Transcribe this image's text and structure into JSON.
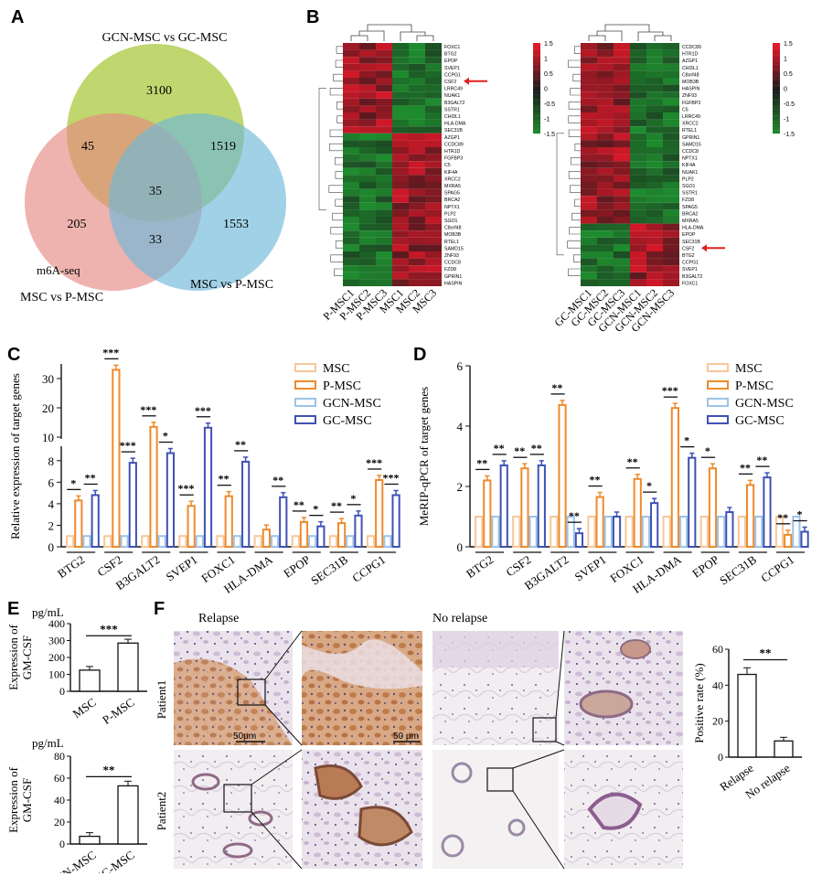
{
  "panels": {
    "a": "A",
    "b": "B",
    "c": "C",
    "d": "D",
    "e": "E",
    "f": "F"
  },
  "venn": {
    "sets": [
      {
        "name": "GCN-MSC vs GC-MSC",
        "color": "#b5cf55"
      },
      {
        "name_line1": "m6A-seq",
        "name_line2": "MSC vs P-MSC",
        "color": "#e58a83"
      },
      {
        "name": "MSC vs P-MSC",
        "color": "#6fb8d9"
      }
    ],
    "regions": {
      "top_only": "3100",
      "left_only": "205",
      "right_only": "1553",
      "top_left": "45",
      "top_right": "1519",
      "left_right": "33",
      "center": "35"
    }
  },
  "heatmap_b": {
    "scale": {
      "ticks": [
        "1.5",
        "1",
        "0.5",
        "0",
        "-0.5",
        "-1",
        "-1.5"
      ],
      "colors": [
        "#e8182a",
        "#1b1b1b",
        "#1e8b2e"
      ]
    },
    "left": {
      "genes": [
        "FOXC1",
        "BTG2",
        "EPOP",
        "SVEP1",
        "CCPG1",
        "CSF2",
        "LRRC49",
        "NUAK1",
        "B3GALT2",
        "SSTR1",
        "CHI3L1",
        "HLA-DMA",
        "SEC31B",
        "AZGP1",
        "CCDC89",
        "HTR1D",
        "FGFBP3",
        "C5",
        "KIF4A",
        "XRCC2",
        "MXRA5",
        "SPAG5",
        "BRCA2",
        "NPTX1",
        "PLP2",
        "SGO1",
        "C8orf48",
        "MOB3B",
        "RTEL1",
        "SAMD15",
        "ZNF93",
        "CCDC8",
        "FZD8",
        "GPRIN1",
        "HASPIN"
      ],
      "samples": [
        "P-MSC1",
        "P-MSC2",
        "P-MSC3",
        "MSC1",
        "MSC2",
        "MSC3"
      ],
      "arrow_gene": "CSF2"
    },
    "right": {
      "genes": [
        "CCDC89",
        "HTR1D",
        "AZGP1",
        "CHI3L1",
        "C8orf48",
        "MOB3B",
        "HASPIN",
        "ZNF93",
        "FGFBP3",
        "C5",
        "LRRC49",
        "XRCC2",
        "RTEL1",
        "GPRIN1",
        "SAMD15",
        "CCDC8",
        "NPTX1",
        "KIF4A",
        "NUAK1",
        "PLP2",
        "SGO1",
        "SSTR1",
        "FZD8",
        "SPAG5",
        "BRCA2",
        "MXRA5",
        "HLA-DMA",
        "EPOP",
        "SEC31B",
        "CSF2",
        "BTG2",
        "CCPG1",
        "SVEP1",
        "B3GALT2",
        "FOXC1"
      ],
      "samples": [
        "GC-MSC1",
        "GC-MSC2",
        "GC-MSC3",
        "GCN-MSC1",
        "GCN-MSC2",
        "GCN-MSC3"
      ],
      "arrow_gene": "CSF2"
    }
  },
  "chart_data": [
    {
      "type": "bar",
      "panel": "C",
      "ylabel": "Relative expression of target genes",
      "yticks_lower": [
        "0",
        "2",
        "4",
        "6",
        "8"
      ],
      "yticks_upper": [
        "10",
        "20",
        "30"
      ],
      "categories": [
        "BTG2",
        "CSF2",
        "B3GALT2",
        "SVEP1",
        "FOXC1",
        "HLA-DMA",
        "EPOP",
        "SEC31B",
        "CCPG1"
      ],
      "series": [
        {
          "name": "MSC",
          "color": "#f6c79a",
          "values": [
            1,
            1,
            1,
            1,
            1,
            1,
            1,
            1,
            1
          ]
        },
        {
          "name": "P-MSC",
          "color": "#ef8a2b",
          "values": [
            4.3,
            33,
            13.5,
            3.8,
            4.7,
            1.6,
            2.3,
            2.2,
            6.2
          ]
        },
        {
          "name": "GCN-MSC",
          "color": "#9cc3e8",
          "values": [
            1,
            1,
            1,
            1,
            1,
            1,
            1,
            1,
            1
          ]
        },
        {
          "name": "GC-MSC",
          "color": "#3f51b5",
          "values": [
            4.8,
            7.8,
            8.7,
            13.2,
            7.9,
            4.6,
            1.9,
            2.9,
            4.8
          ]
        }
      ],
      "sig": [
        [
          "*",
          "**"
        ],
        [
          "***",
          "***"
        ],
        [
          "***",
          "*"
        ],
        [
          "***",
          "***"
        ],
        [
          "**",
          "**"
        ],
        [
          "",
          "**"
        ],
        [
          "**",
          "*"
        ],
        [
          "**",
          "*"
        ],
        [
          "***",
          "***"
        ]
      ]
    },
    {
      "type": "bar",
      "panel": "D",
      "ylabel": "MeRIP-qPCR of target genes",
      "yticks": [
        "0",
        "2",
        "4",
        "6"
      ],
      "ylim": [
        0,
        6
      ],
      "categories": [
        "BTG2",
        "CSF2",
        "B3GALT2",
        "SVEP1",
        "FOXC1",
        "HLA-DMA",
        "EPOP",
        "SEC31B",
        "CCPG1"
      ],
      "series": [
        {
          "name": "MSC",
          "color": "#f6c79a",
          "values": [
            1,
            1,
            1,
            1,
            1,
            1,
            1,
            1,
            1
          ]
        },
        {
          "name": "P-MSC",
          "color": "#ef8a2b",
          "values": [
            2.2,
            2.6,
            4.7,
            1.65,
            2.25,
            4.6,
            2.6,
            2.05,
            0.4
          ]
        },
        {
          "name": "GCN-MSC",
          "color": "#9cc3e8",
          "values": [
            1,
            1,
            1,
            1,
            1,
            1,
            1,
            1,
            1
          ]
        },
        {
          "name": "GC-MSC",
          "color": "#3f51b5",
          "values": [
            2.7,
            2.7,
            0.45,
            1.0,
            1.45,
            2.95,
            1.15,
            2.3,
            0.5
          ]
        }
      ],
      "sig": [
        [
          "**",
          "**"
        ],
        [
          "**",
          "**"
        ],
        [
          "**",
          "**"
        ],
        [
          "**",
          ""
        ],
        [
          "**",
          "*"
        ],
        [
          "***",
          "*"
        ],
        [
          "*",
          ""
        ],
        [
          "**",
          "**"
        ],
        [
          "**",
          "*"
        ]
      ]
    },
    {
      "type": "bar",
      "panel": "E1",
      "unit": "pg/mL",
      "ylabel_line1": "Expression of",
      "ylabel_line2": "GM-CSF",
      "yticks": [
        "0",
        "100",
        "200",
        "300",
        "400"
      ],
      "ylim": [
        0,
        400
      ],
      "categories": [
        "MSC",
        "P-MSC"
      ],
      "values": [
        125,
        285
      ],
      "sig": "***"
    },
    {
      "type": "bar",
      "panel": "E2",
      "unit": "pg/mL",
      "ylabel_line1": "Expression of",
      "ylabel_line2": "GM-CSF",
      "yticks": [
        "0",
        "20",
        "40",
        "60",
        "80"
      ],
      "ylim": [
        0,
        80
      ],
      "categories": [
        "GCN-MSC",
        "GC-MSC"
      ],
      "values": [
        7,
        53
      ],
      "sig": "**"
    },
    {
      "type": "bar",
      "panel": "F",
      "ylabel": "Positive rate (%)",
      "yticks": [
        "0",
        "20",
        "40",
        "60"
      ],
      "ylim": [
        0,
        60
      ],
      "categories": [
        "Relapse",
        "No relapse"
      ],
      "values": [
        46,
        9
      ],
      "sig": "**"
    }
  ],
  "histology": {
    "col_relapse": "Relapse",
    "col_norelapse": "No relapse",
    "row1": "Patient1",
    "row2": "Patient2",
    "scale1": "50μm",
    "scale2": "50 μm"
  }
}
